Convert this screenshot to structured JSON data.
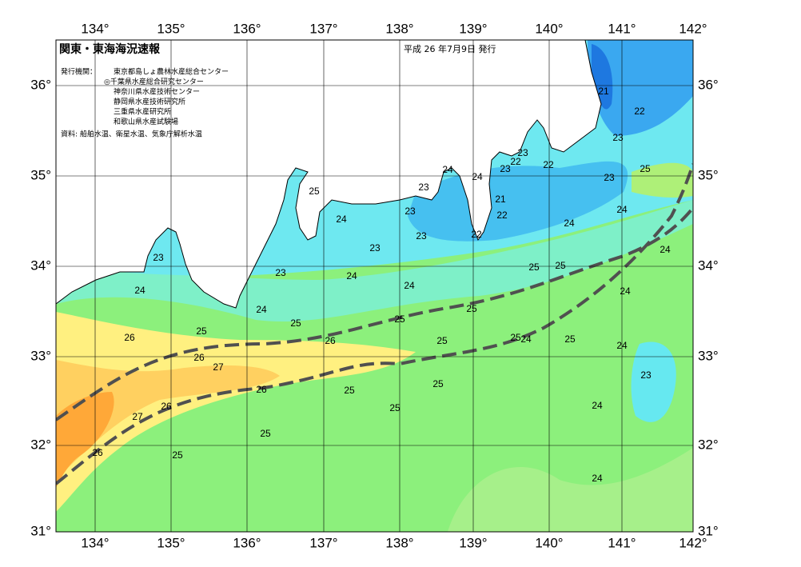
{
  "header": {
    "title": "関東・東海海況速報",
    "date": "平成 26 年7月9日 発行"
  },
  "info": {
    "issuers_label": "発行機関：",
    "issuers": [
      "東京都島しょ農林水産総合センター",
      "◎千葉県水産総合研究センター",
      "神奈川県水産技術センター",
      "静岡県水産技術研究所",
      "三重県水産研究所",
      "和歌山県水産試験場"
    ],
    "sources": "資料: 船舶水温、衛星水温、気象庁解析水温"
  },
  "axes": {
    "lon_top": [
      "134°",
      "135°",
      "136°",
      "137°",
      "138°",
      "139°",
      "140°",
      "141°",
      "142°"
    ],
    "lon_bottom": [
      "134°",
      "135°",
      "136°",
      "137°",
      "138°",
      "139°",
      "140°",
      "141°",
      "142°"
    ],
    "lat_left": [
      "36°",
      "35°",
      "34°",
      "33°",
      "32°",
      "31°"
    ],
    "lat_right": [
      "36°",
      "35°",
      "34°",
      "33°",
      "32°",
      "31°"
    ]
  },
  "contour_labels": [
    "21",
    "22",
    "23",
    "25",
    "23",
    "22",
    "23",
    "22",
    "23",
    "24",
    "24",
    "23",
    "25",
    "21",
    "23",
    "22",
    "24",
    "24",
    "24",
    "23",
    "22",
    "23",
    "23",
    "25",
    "25",
    "24",
    "23",
    "24",
    "24",
    "24",
    "24",
    "25",
    "24",
    "25",
    "25",
    "25",
    "26",
    "26",
    "25",
    "25",
    "24",
    "25",
    "24",
    "26",
    "27",
    "23",
    "26",
    "25",
    "25",
    "25",
    "26",
    "27",
    "24",
    "25",
    "26",
    "25",
    "24"
  ]
}
